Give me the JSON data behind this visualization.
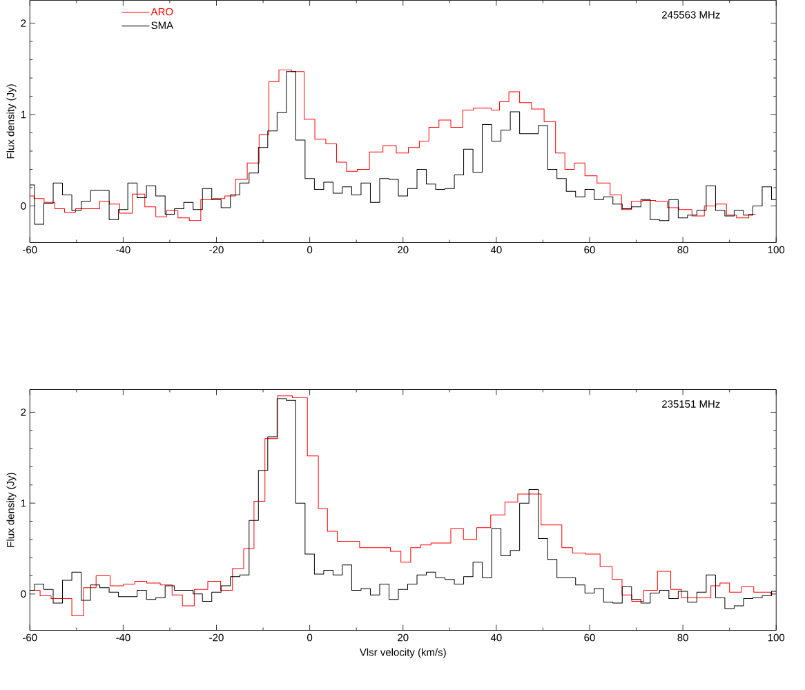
{
  "chart_data": [
    {
      "type": "step",
      "ylabel": "Flux density (Jy)",
      "annotations": [
        "245563 MHz"
      ],
      "xlim": [
        -60,
        100
      ],
      "ylim": [
        -0.4,
        2.25
      ],
      "xticks": [
        -60,
        -40,
        -20,
        0,
        20,
        40,
        60,
        80,
        100
      ],
      "yticks": [
        0,
        1,
        2
      ],
      "legend": "top left",
      "grid": false,
      "series": [
        {
          "name": "ARO",
          "color": "#ff0000",
          "x": [
            -60,
            -58.2,
            -55.7,
            -53.6,
            -51.5,
            -48.9,
            -46.2,
            -43.9,
            -42.0,
            -39.5,
            -36.6,
            -34.1,
            -31.9,
            -29.5,
            -27.0,
            -24.6,
            -22.1,
            -19.4,
            -17.0,
            -14.8,
            -12.0,
            -9.7,
            -7.8,
            -5.4,
            -2.4,
            0.0,
            2.2,
            4.7,
            6.8,
            9.0,
            11.4,
            14.2,
            17.2,
            19.9,
            22.4,
            24.6,
            26.5,
            28.9,
            31.6,
            34.0,
            36.2,
            38.0,
            39.8,
            41.6,
            43.8,
            46.2,
            48.9,
            51.6,
            53.8,
            55.6,
            57.8,
            60.2,
            63.0,
            65.8,
            67.9,
            70.0,
            72.7,
            75.6,
            77.8,
            80.5,
            83.4,
            85.8,
            88.3,
            90.4,
            92.6,
            95.6
          ],
          "values": [
            0.11,
            0.08,
            0.04,
            -0.03,
            -0.07,
            -0.03,
            -0.03,
            0.05,
            0.02,
            -0.08,
            0.13,
            -0.01,
            -0.12,
            -0.05,
            -0.13,
            -0.16,
            0.07,
            0.08,
            0.11,
            0.29,
            0.47,
            0.78,
            1.36,
            1.49,
            1.47,
            0.95,
            0.73,
            0.68,
            0.48,
            0.38,
            0.4,
            0.59,
            0.66,
            0.58,
            0.64,
            0.71,
            0.86,
            0.94,
            0.86,
            1.05,
            1.07,
            1.07,
            1.05,
            1.14,
            1.25,
            1.13,
            1.06,
            0.92,
            0.58,
            0.4,
            0.47,
            0.33,
            0.25,
            0.12,
            -0.04,
            0.05,
            0.06,
            0.05,
            -0.02,
            -0.04,
            -0.11,
            0.0,
            0.02,
            -0.1,
            -0.13,
            -0.09
          ]
        },
        {
          "name": "SMA",
          "color": "#000000",
          "x": [
            -60,
            -58,
            -56,
            -54,
            -52,
            -50,
            -48,
            -46,
            -44,
            -42,
            -40,
            -38,
            -36,
            -34,
            -32,
            -30,
            -28,
            -26,
            -24,
            -22,
            -20,
            -18,
            -16,
            -14,
            -12,
            -10,
            -8,
            -6,
            -4,
            -2,
            0,
            2,
            4,
            6,
            8,
            10,
            12,
            14,
            16,
            18,
            20,
            22,
            24,
            26,
            28,
            30,
            32,
            34,
            36,
            38,
            40,
            42,
            44,
            46,
            48,
            50,
            52,
            54,
            56,
            58,
            60,
            62,
            64,
            66,
            68,
            70,
            72,
            74,
            76,
            78,
            80,
            82,
            84,
            86,
            88,
            90,
            92,
            94,
            96,
            98,
            100
          ],
          "values": [
            0.23,
            -0.2,
            0.03,
            0.25,
            0.12,
            -0.05,
            0.05,
            0.17,
            0.17,
            -0.15,
            -0.04,
            0.25,
            0.09,
            0.22,
            0.11,
            -0.09,
            -0.03,
            0.04,
            -0.04,
            0.19,
            0.07,
            -0.02,
            0.12,
            0.25,
            0.36,
            0.64,
            0.82,
            1.02,
            1.47,
            0.72,
            0.3,
            0.18,
            0.26,
            0.14,
            0.21,
            0.12,
            0.25,
            0.04,
            0.3,
            0.29,
            0.11,
            0.19,
            0.4,
            0.24,
            0.18,
            0.19,
            0.34,
            0.62,
            0.37,
            0.89,
            0.71,
            0.83,
            1.03,
            0.79,
            0.79,
            0.88,
            0.4,
            0.3,
            0.16,
            0.1,
            0.18,
            0.07,
            0.1,
            0.02,
            -0.03,
            -0.01,
            0.07,
            -0.15,
            -0.16,
            0.07,
            -0.13,
            -0.1,
            -0.05,
            0.22,
            -0.05,
            -0.11,
            -0.05,
            -0.1,
            0.0,
            0.21,
            0.07
          ]
        }
      ]
    },
    {
      "type": "step",
      "xlabel": "Vlsr velocity (km/s)",
      "ylabel": "Flux density (Jy)",
      "annotations": [
        "235151 MHz"
      ],
      "xlim": [
        -60,
        100
      ],
      "ylim": [
        -0.4,
        2.25
      ],
      "xticks": [
        -60,
        -40,
        -20,
        0,
        20,
        40,
        60,
        80,
        100
      ],
      "yticks": [
        0,
        1,
        2
      ],
      "grid": false,
      "series": [
        {
          "color": "#ff0000",
          "x": [
            -59.1,
            -56.5,
            -54.4,
            -52.2,
            -49.8,
            -47.2,
            -44.4,
            -41.2,
            -38.6,
            -36.4,
            -33.5,
            -30.6,
            -28.4,
            -26.2,
            -23.3,
            -20.4,
            -17.8,
            -15.3,
            -13.0,
            -10.9,
            -8.3,
            -5.5,
            -1.9,
            0.9,
            2.8,
            4.8,
            7.0,
            9.5,
            11.9,
            14.0,
            16.2,
            18.4,
            20.7,
            22.6,
            24.9,
            27.1,
            29.0,
            31.5,
            34.4,
            37.2,
            40.4,
            43.3,
            45.9,
            48.4,
            50.8,
            53.0,
            55.1,
            57.6,
            60.8,
            63.7,
            66.0,
            67.9,
            70.2,
            73.0,
            76.1,
            78.7,
            80.7,
            82.9,
            85.0,
            87.0,
            88.9,
            91.1,
            94.0,
            96.4,
            98.2,
            99.5
          ],
          "values": [
            0.04,
            -0.02,
            -0.05,
            -0.05,
            -0.24,
            0.07,
            0.2,
            0.09,
            0.11,
            0.14,
            0.12,
            0.1,
            -0.01,
            -0.13,
            0.05,
            0.14,
            0.04,
            0.28,
            0.5,
            1.02,
            1.71,
            2.18,
            2.16,
            1.52,
            0.94,
            0.69,
            0.58,
            0.58,
            0.51,
            0.51,
            0.51,
            0.47,
            0.35,
            0.51,
            0.54,
            0.56,
            0.56,
            0.72,
            0.6,
            0.73,
            0.87,
            1.01,
            1.1,
            1.1,
            0.76,
            0.76,
            0.51,
            0.45,
            0.44,
            0.3,
            0.16,
            -0.01,
            -0.08,
            0.04,
            0.25,
            0.05,
            -0.04,
            -0.04,
            -0.04,
            0.09,
            0.12,
            0.02,
            0.08,
            0.02,
            0.02,
            0.0
          ]
        },
        {
          "color": "#000000",
          "x": [
            -60,
            -58,
            -56,
            -54,
            -52,
            -50,
            -48,
            -46,
            -44,
            -42,
            -40,
            -38,
            -36,
            -34,
            -32,
            -30,
            -28,
            -26,
            -24,
            -22,
            -20,
            -18,
            -16,
            -14,
            -12,
            -10,
            -8,
            -6,
            -4,
            -2,
            0,
            2,
            4,
            6,
            8,
            10,
            12,
            14,
            16,
            18,
            20,
            22,
            24,
            26,
            28,
            30,
            32,
            34,
            36,
            38,
            40,
            42,
            44,
            46,
            48,
            50,
            52,
            54,
            56,
            58,
            60,
            62,
            64,
            66,
            68,
            70,
            72,
            74,
            76,
            78,
            80,
            82,
            84,
            86,
            88,
            90,
            92,
            94,
            96,
            98,
            100
          ],
          "values": [
            0.04,
            0.11,
            0.05,
            -0.1,
            0.15,
            0.24,
            -0.07,
            0.1,
            0.07,
            0.02,
            -0.03,
            -0.03,
            0.04,
            -0.06,
            -0.04,
            0.09,
            0.04,
            0.04,
            0.0,
            -0.08,
            0.02,
            0.09,
            0.19,
            0.21,
            0.81,
            1.36,
            1.73,
            2.15,
            2.13,
            1.0,
            0.44,
            0.22,
            0.26,
            0.21,
            0.32,
            0.04,
            0.06,
            -0.01,
            0.11,
            -0.06,
            0.05,
            0.11,
            0.21,
            0.24,
            0.18,
            0.16,
            0.11,
            0.19,
            0.35,
            0.18,
            0.72,
            0.42,
            0.48,
            1.0,
            1.15,
            0.61,
            0.38,
            0.18,
            0.18,
            0.1,
            0.01,
            0.06,
            -0.09,
            -0.1,
            0.08,
            -0.06,
            -0.1,
            0.01,
            0.04,
            -0.05,
            0.03,
            -0.09,
            0.02,
            0.21,
            -0.04,
            -0.16,
            -0.13,
            -0.05,
            -0.04,
            -0.02,
            0.03
          ]
        }
      ]
    }
  ]
}
